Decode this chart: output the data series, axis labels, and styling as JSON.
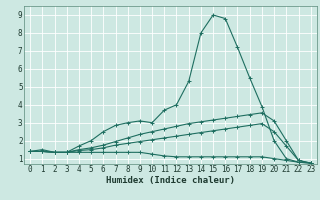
{
  "xlabel": "Humidex (Indice chaleur)",
  "xlim": [
    -0.5,
    23.5
  ],
  "ylim": [
    0.7,
    9.5
  ],
  "xticks": [
    0,
    1,
    2,
    3,
    4,
    5,
    6,
    7,
    8,
    9,
    10,
    11,
    12,
    13,
    14,
    15,
    16,
    17,
    18,
    19,
    20,
    21,
    22,
    23
  ],
  "yticks": [
    1,
    2,
    3,
    4,
    5,
    6,
    7,
    8,
    9
  ],
  "bg_color": "#cde8e2",
  "line_color": "#1e6e60",
  "grid_color": "#ffffff",
  "lines": [
    {
      "x": [
        0,
        1,
        2,
        3,
        4,
        5,
        6,
        7,
        8,
        9,
        10,
        11,
        12,
        13,
        14,
        15,
        16,
        17,
        18,
        19,
        20,
        21,
        22,
        23
      ],
      "y": [
        1.4,
        1.5,
        1.35,
        1.35,
        1.7,
        2.0,
        2.5,
        2.85,
        3.0,
        3.1,
        3.0,
        3.7,
        4.0,
        5.3,
        8.0,
        9.0,
        8.8,
        7.2,
        5.5,
        3.9,
        2.0,
        1.0,
        0.8,
        0.75
      ]
    },
    {
      "x": [
        0,
        1,
        2,
        3,
        4,
        5,
        6,
        7,
        8,
        9,
        10,
        11,
        12,
        13,
        14,
        15,
        16,
        17,
        18,
        19,
        20,
        21,
        22,
        23
      ],
      "y": [
        1.4,
        1.4,
        1.35,
        1.35,
        1.5,
        1.6,
        1.75,
        1.95,
        2.15,
        2.35,
        2.5,
        2.65,
        2.8,
        2.95,
        3.05,
        3.15,
        3.25,
        3.35,
        3.45,
        3.55,
        3.1,
        2.0,
        0.9,
        0.75
      ]
    },
    {
      "x": [
        0,
        1,
        2,
        3,
        4,
        5,
        6,
        7,
        8,
        9,
        10,
        11,
        12,
        13,
        14,
        15,
        16,
        17,
        18,
        19,
        20,
        21,
        22,
        23
      ],
      "y": [
        1.4,
        1.4,
        1.35,
        1.35,
        1.45,
        1.5,
        1.6,
        1.75,
        1.85,
        1.95,
        2.05,
        2.15,
        2.25,
        2.35,
        2.45,
        2.55,
        2.65,
        2.75,
        2.85,
        2.95,
        2.5,
        1.7,
        0.9,
        0.75
      ]
    },
    {
      "x": [
        0,
        1,
        2,
        3,
        4,
        5,
        6,
        7,
        8,
        9,
        10,
        11,
        12,
        13,
        14,
        15,
        16,
        17,
        18,
        19,
        20,
        21,
        22,
        23
      ],
      "y": [
        1.4,
        1.4,
        1.35,
        1.35,
        1.35,
        1.35,
        1.35,
        1.35,
        1.35,
        1.35,
        1.25,
        1.15,
        1.1,
        1.1,
        1.1,
        1.1,
        1.1,
        1.1,
        1.1,
        1.1,
        1.0,
        0.9,
        0.8,
        0.75
      ]
    }
  ]
}
